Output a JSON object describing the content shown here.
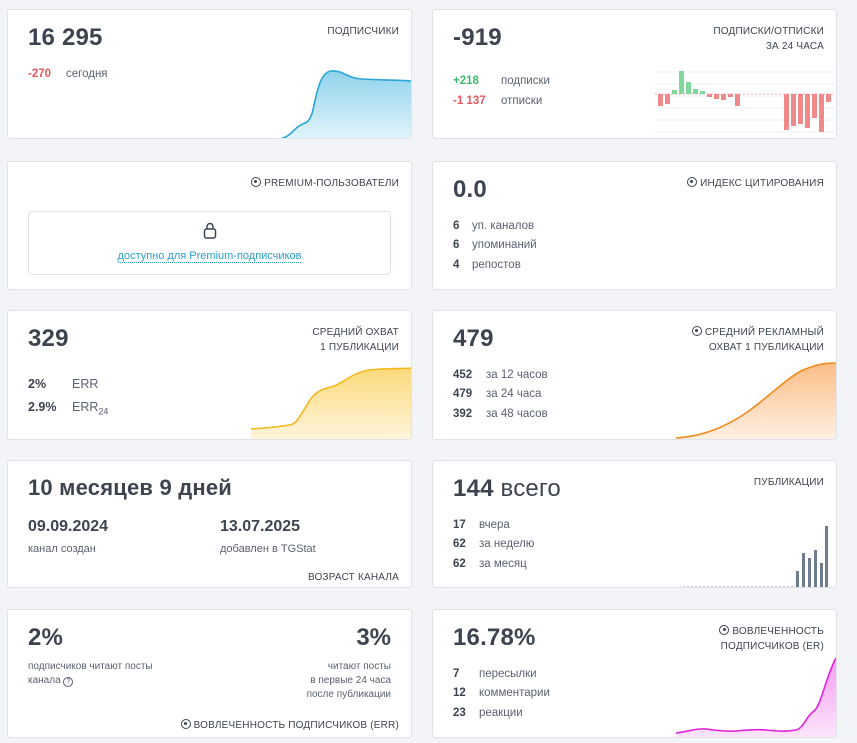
{
  "subscribers": {
    "value": "16 295",
    "title": "ПОДПИСЧИКИ",
    "today_delta": "-270",
    "today_label": "сегодня",
    "chart_color": "#2aa5d4"
  },
  "daily_change": {
    "value": "-919",
    "title_line1": "ПОДПИСКИ/ОТПИСКИ",
    "title_line2": "ЗА 24 ЧАСА",
    "subs_value": "+218",
    "subs_label": "подписки",
    "unsubs_value": "-1 137",
    "unsubs_label": "отписки"
  },
  "premium": {
    "title": "PREMIUM-ПОЛЬЗОВАТЕЛИ",
    "link_text": "доступно для Premium-подписчиков"
  },
  "citation": {
    "value": "0.0",
    "title": "ИНДЕКС ЦИТИРОВАНИЯ",
    "rows": [
      {
        "num": "6",
        "label": "уп. каналов"
      },
      {
        "num": "6",
        "label": "упоминаний"
      },
      {
        "num": "4",
        "label": "репостов"
      }
    ]
  },
  "reach": {
    "value": "329",
    "title_line1": "СРЕДНИЙ ОХВАТ",
    "title_line2": "1 ПУБЛИКАЦИИ",
    "err_value": "2%",
    "err_label": "ERR",
    "err24_value": "2.9%",
    "err24_label": "ERR",
    "err24_sub": "24"
  },
  "ad_reach": {
    "value": "479",
    "title_line1": "СРЕДНИЙ РЕКЛАМНЫЙ",
    "title_line2": "ОХВАТ 1 ПУБЛИКАЦИИ",
    "rows": [
      {
        "num": "452",
        "label": "за 12 часов"
      },
      {
        "num": "479",
        "label": "за 24 часа"
      },
      {
        "num": "392",
        "label": "за 48 часов"
      }
    ]
  },
  "age": {
    "value": "10 месяцев 9 дней",
    "created_date": "09.09.2024",
    "created_label": "канал создан",
    "added_date": "13.07.2025",
    "added_label": "добавлен в TGStat",
    "title": "ВОЗРАСТ КАНАЛА"
  },
  "posts": {
    "value": "144",
    "value_suffix": "всего",
    "title": "ПУБЛИКАЦИИ",
    "rows": [
      {
        "num": "17",
        "label": "вчера"
      },
      {
        "num": "62",
        "label": "за неделю"
      },
      {
        "num": "62",
        "label": "за месяц"
      }
    ]
  },
  "engagement_err": {
    "left_value": "2%",
    "left_label_line1": "подписчиков читают посты",
    "left_label_line2": "канала",
    "right_value": "3%",
    "right_label_line1": "читают посты",
    "right_label_line2": "в первые 24 часа",
    "right_label_line3": "после публикации",
    "title": "ВОВЛЕЧЕННОСТЬ ПОДПИСЧИКОВ (ERR)"
  },
  "engagement_er": {
    "value": "16.78%",
    "title_line1": "ВОВЛЕЧЕННОСТЬ",
    "title_line2": "ПОДПИСЧИКОВ (ER)",
    "rows": [
      {
        "num": "7",
        "label": "пересылки"
      },
      {
        "num": "12",
        "label": "комментарии"
      },
      {
        "num": "23",
        "label": "реакции"
      }
    ]
  }
}
